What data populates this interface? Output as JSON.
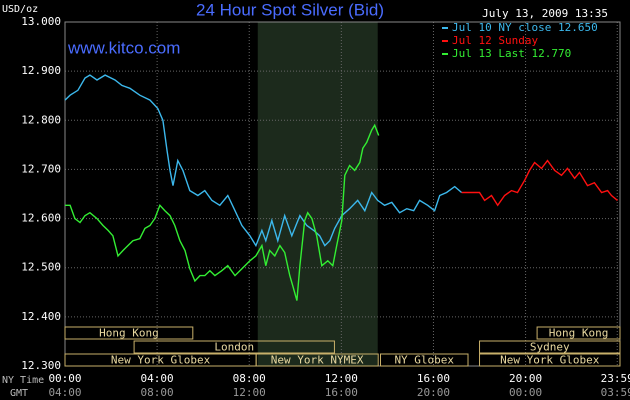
{
  "chart_data": {
    "type": "line",
    "title": "24 Hour Spot Silver (Bid)",
    "timestamp": "July 13, 2009 13:35",
    "y_axis_label": "USD/oz",
    "watermark": "www.kitco.com",
    "x_row_labels": [
      "NY Time",
      "GMT"
    ],
    "xlim": [
      0,
      24.1
    ],
    "xticks": [
      {
        "value": 0,
        "label": "00:00"
      },
      {
        "value": 4,
        "label": "04:00"
      },
      {
        "value": 8,
        "label": "08:00"
      },
      {
        "value": 12,
        "label": "12:00"
      },
      {
        "value": 16,
        "label": "16:00"
      },
      {
        "value": 20,
        "label": "20:00"
      },
      {
        "value": 23.98,
        "label": "23:59"
      }
    ],
    "gmt_tick_labels": [
      "04:00",
      "08:00",
      "12:00",
      "16:00",
      "20:00",
      "00:00",
      "03:59"
    ],
    "ylim": [
      12.3,
      13.0
    ],
    "yticks": [
      {
        "value": 12.3,
        "label": "12.300"
      },
      {
        "value": 12.4,
        "label": "12.400"
      },
      {
        "value": 12.5,
        "label": "12.500"
      },
      {
        "value": 12.6,
        "label": "12.600"
      },
      {
        "value": 12.7,
        "label": "12.700"
      },
      {
        "value": 12.8,
        "label": "12.800"
      },
      {
        "value": 12.9,
        "label": "12.900"
      },
      {
        "value": 13.0,
        "label": "13.000"
      }
    ],
    "grid": true,
    "shaded_range": [
      8.37,
      13.58
    ],
    "series": [
      {
        "name": "Jul 10 NY close 12.650",
        "color": "#3cb8ec",
        "x": [
          0,
          0.22,
          0.56,
          0.87,
          1.08,
          1.39,
          1.74,
          2.17,
          2.47,
          2.82,
          3.25,
          3.69,
          4.03,
          4.25,
          4.43,
          4.56,
          4.69,
          4.9,
          5.12,
          5.42,
          5.77,
          6.07,
          6.38,
          6.72,
          7.07,
          7.38,
          7.68,
          8.03,
          8.29,
          8.55,
          8.72,
          8.98,
          9.24,
          9.54,
          9.85,
          10.2,
          10.5,
          10.8,
          11.06,
          11.28,
          11.5,
          11.71,
          12.02,
          12.36,
          12.71,
          13.02,
          13.32,
          13.58,
          13.88,
          14.19,
          14.53,
          14.84,
          15.14,
          15.4,
          15.75,
          16.05,
          16.27,
          16.57,
          16.92,
          17.22
        ],
        "values": [
          12.841,
          12.851,
          12.861,
          12.886,
          12.892,
          12.882,
          12.892,
          12.882,
          12.871,
          12.865,
          12.851,
          12.841,
          12.824,
          12.8,
          12.739,
          12.698,
          12.667,
          12.718,
          12.698,
          12.657,
          12.647,
          12.657,
          12.637,
          12.627,
          12.647,
          12.616,
          12.586,
          12.565,
          12.545,
          12.576,
          12.555,
          12.596,
          12.555,
          12.606,
          12.565,
          12.606,
          12.586,
          12.576,
          12.565,
          12.545,
          12.555,
          12.58,
          12.606,
          12.62,
          12.637,
          12.616,
          12.653,
          12.637,
          12.627,
          12.633,
          12.612,
          12.62,
          12.616,
          12.637,
          12.627,
          12.616,
          12.647,
          12.653,
          12.665,
          12.653
        ]
      },
      {
        "name": "Jul 12 Sunday",
        "color": "#ff1010",
        "x": [
          17.22,
          18.0,
          18.22,
          18.52,
          18.79,
          19.09,
          19.39,
          19.65,
          19.96,
          20.17,
          20.39,
          20.69,
          20.95,
          21.26,
          21.56,
          21.82,
          22.13,
          22.34,
          22.69,
          22.99,
          23.3,
          23.56,
          23.73,
          23.99
        ],
        "values": [
          12.653,
          12.653,
          12.637,
          12.647,
          12.627,
          12.647,
          12.657,
          12.653,
          12.678,
          12.698,
          12.714,
          12.702,
          12.718,
          12.698,
          12.688,
          12.702,
          12.682,
          12.694,
          12.667,
          12.673,
          12.653,
          12.657,
          12.647,
          12.637
        ]
      },
      {
        "name": "Jul 13 Last 12.770",
        "color": "#33ee33",
        "x": [
          0,
          0.22,
          0.43,
          0.65,
          0.87,
          1.08,
          1.39,
          1.65,
          1.87,
          2.08,
          2.3,
          2.52,
          2.73,
          2.95,
          3.25,
          3.47,
          3.69,
          3.9,
          4.12,
          4.34,
          4.56,
          4.77,
          4.99,
          5.21,
          5.42,
          5.64,
          5.86,
          6.07,
          6.29,
          6.51,
          6.81,
          7.07,
          7.38,
          7.68,
          8.03,
          8.29,
          8.55,
          8.72,
          8.89,
          9.11,
          9.33,
          9.54,
          9.76,
          9.89,
          10.07,
          10.2,
          10.41,
          10.54,
          10.72,
          10.93,
          11.15,
          11.41,
          11.63,
          11.8,
          12.02,
          12.15,
          12.36,
          12.58,
          12.8,
          12.93,
          13.1,
          13.32,
          13.45,
          13.62
        ],
        "values": [
          12.627,
          12.627,
          12.6,
          12.592,
          12.606,
          12.612,
          12.6,
          12.586,
          12.576,
          12.565,
          12.524,
          12.535,
          12.545,
          12.555,
          12.559,
          12.58,
          12.586,
          12.6,
          12.627,
          12.616,
          12.606,
          12.586,
          12.555,
          12.535,
          12.498,
          12.473,
          12.484,
          12.484,
          12.494,
          12.484,
          12.494,
          12.504,
          12.484,
          12.498,
          12.514,
          12.524,
          12.545,
          12.504,
          12.535,
          12.524,
          12.545,
          12.531,
          12.484,
          12.463,
          12.433,
          12.504,
          12.596,
          12.612,
          12.6,
          12.565,
          12.504,
          12.514,
          12.504,
          12.545,
          12.596,
          12.688,
          12.708,
          12.698,
          12.714,
          12.743,
          12.755,
          12.78,
          12.79,
          12.769
        ]
      }
    ],
    "session_rows": [
      [
        {
          "label": "Hong Kong",
          "start": 0,
          "end": 5.55
        },
        {
          "label": "Hong Kong",
          "start": 20.5,
          "end": 24.1
        }
      ],
      [
        {
          "label": "London",
          "start": 3.0,
          "end": 11.7
        },
        {
          "label": "Sydney",
          "start": 18.0,
          "end": 24.1
        }
      ],
      [
        {
          "label": "New York Globex",
          "start": 0,
          "end": 8.3
        },
        {
          "label": "New York NYMEX",
          "start": 8.3,
          "end": 13.6
        },
        {
          "label": "NY Globex",
          "start": 13.7,
          "end": 17.5
        },
        {
          "label": "New York Globex",
          "start": 18.0,
          "end": 24.1
        }
      ]
    ]
  }
}
